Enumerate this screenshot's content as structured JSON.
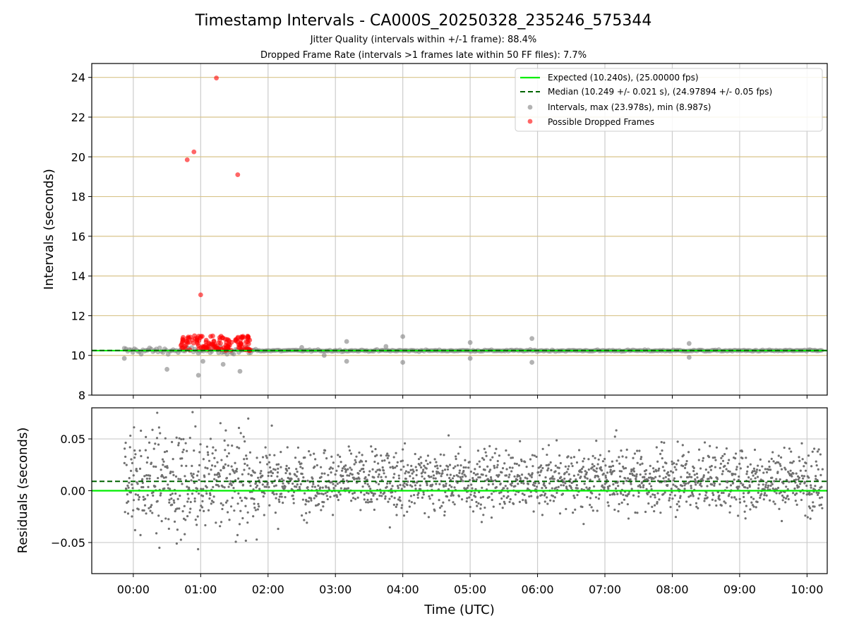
{
  "chart_data": [
    {
      "panel": "intervals",
      "type": "scatter",
      "title": "Timestamp Intervals - CA000S_20250328_235246_575344",
      "subtitle_1": "Jitter Quality (intervals within +/-1 frame): 88.4%",
      "subtitle_2": "Dropped Frame Rate (intervals >1 frames late within 50 FF files): 7.7%",
      "ylabel": "Intervals (seconds)",
      "ylim": [
        8,
        24.7
      ],
      "yticks": [
        "8",
        "10",
        "12",
        "14",
        "16",
        "18",
        "20",
        "22",
        "24"
      ],
      "grid": true,
      "legend_position": "upper right",
      "legend": [
        {
          "label": "Expected (10.240s), (25.00000 fps)",
          "kind": "line",
          "color": "#00ee00"
        },
        {
          "label": "Median (10.249 +/- 0.021 s), (24.97894 +/- 0.05 fps)",
          "kind": "dashed",
          "color": "#006400"
        },
        {
          "label": "Intervals, max (23.978s), min (8.987s)",
          "kind": "marker",
          "color": "#808080"
        },
        {
          "label": "Possible Dropped Frames",
          "kind": "marker",
          "color": "#ff0000"
        }
      ],
      "expected": 10.24,
      "median": 10.249,
      "interval_outliers": [
        {
          "t": "23:52",
          "y": 9.85
        },
        {
          "t": "00:30",
          "y": 9.3
        },
        {
          "t": "00:58",
          "y": 9.0
        },
        {
          "t": "01:02",
          "y": 9.7
        },
        {
          "t": "01:20",
          "y": 9.55
        },
        {
          "t": "01:35",
          "y": 9.2
        },
        {
          "t": "02:30",
          "y": 10.4
        },
        {
          "t": "02:50",
          "y": 10.0
        },
        {
          "t": "03:10",
          "y": 10.7
        },
        {
          "t": "03:10",
          "y": 9.7
        },
        {
          "t": "03:45",
          "y": 10.45
        },
        {
          "t": "04:00",
          "y": 10.95
        },
        {
          "t": "04:00",
          "y": 9.65
        },
        {
          "t": "05:00",
          "y": 10.65
        },
        {
          "t": "05:00",
          "y": 9.85
        },
        {
          "t": "05:55",
          "y": 10.85
        },
        {
          "t": "05:55",
          "y": 9.65
        },
        {
          "t": "08:15",
          "y": 10.6
        },
        {
          "t": "08:15",
          "y": 9.9
        }
      ],
      "dropped_frames_outliers": [
        {
          "t": "00:48",
          "y": 19.85
        },
        {
          "t": "00:54",
          "y": 20.25
        },
        {
          "t": "01:00",
          "y": 13.05
        },
        {
          "t": "01:14",
          "y": 23.97
        },
        {
          "t": "01:33",
          "y": 19.1
        }
      ],
      "dropped_frames_cluster": {
        "t_start": "00:42",
        "t_end": "01:45",
        "y_min": 10.25,
        "y_max": 11.0
      },
      "interval_band": {
        "t_start": "23:52",
        "t_end": "10:14",
        "y_center": 10.24
      }
    },
    {
      "panel": "residuals",
      "type": "scatter",
      "xlabel": "Time (UTC)",
      "ylabel": "Residuals (seconds)",
      "ylim": [
        -0.08,
        0.08
      ],
      "yticks": [
        "−0.05",
        "0.00",
        "0.05"
      ],
      "xticks": [
        "00:00",
        "01:00",
        "02:00",
        "03:00",
        "04:00",
        "05:00",
        "06:00",
        "07:00",
        "08:00",
        "09:00",
        "10:00"
      ],
      "xlim": [
        "23:23",
        "10:18"
      ],
      "grid": true,
      "expected_residual": 0.0,
      "median_residual": 0.009,
      "residual_spread": {
        "center": 0.01,
        "std": 0.02
      }
    }
  ]
}
